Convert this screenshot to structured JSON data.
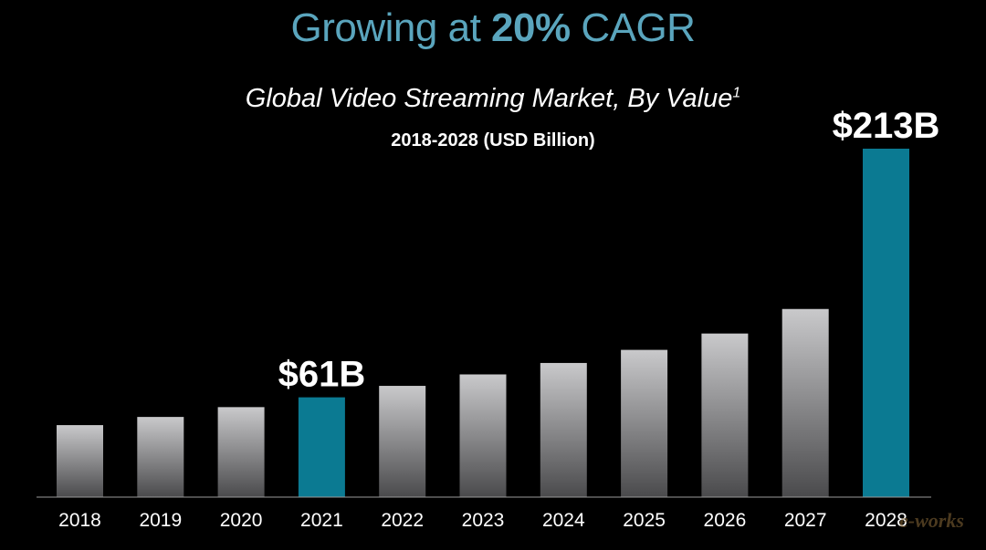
{
  "header": {
    "title_prefix": "Growing at ",
    "title_strong": "20%",
    "title_suffix": " CAGR",
    "subtitle": "Global Video Streaming Market, By Value",
    "subtitle_footnote": "1",
    "range": "2018-2028 (USD Billion)"
  },
  "watermark": "e-works",
  "colors": {
    "background": "#000000",
    "highlight": "#0b7a92",
    "bar_top": "#c9c9cb",
    "bar_bottom": "#4a4a4c",
    "title": "#5aa5bd",
    "axis": "#9a9a9a"
  },
  "chart_data": {
    "type": "bar",
    "categories": [
      "2018",
      "2019",
      "2020",
      "2021",
      "2022",
      "2023",
      "2024",
      "2025",
      "2026",
      "2027",
      "2028"
    ],
    "values": [
      44,
      49,
      55,
      61,
      68,
      75,
      82,
      90,
      100,
      115,
      213
    ],
    "value_labels": [
      "",
      "",
      "",
      "$61B",
      "",
      "",
      "",
      "",
      "",
      "",
      "$213B"
    ],
    "highlighted": [
      false,
      false,
      false,
      true,
      false,
      false,
      false,
      false,
      false,
      false,
      true
    ],
    "ylim": [
      0,
      213
    ],
    "grid": false,
    "legend": "none"
  }
}
